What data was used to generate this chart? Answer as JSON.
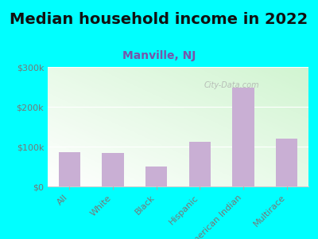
{
  "title": "Median household income in 2022",
  "subtitle": "Manville, NJ",
  "categories": [
    "All",
    "White",
    "Black",
    "Hispanic",
    "American Indian",
    "Multirace"
  ],
  "values": [
    87000,
    85000,
    50000,
    112000,
    248000,
    120000
  ],
  "bar_color": "#c9afd4",
  "background_outer": "#00ffff",
  "title_color": "#111111",
  "subtitle_color": "#7755aa",
  "tick_label_color": "#777777",
  "ylim": [
    0,
    300000
  ],
  "yticks": [
    0,
    100000,
    200000,
    300000
  ],
  "ytick_labels": [
    "$0",
    "$100k",
    "$200k",
    "$300k"
  ],
  "watermark": "City-Data.com",
  "title_fontsize": 14,
  "subtitle_fontsize": 10,
  "tick_fontsize": 8
}
